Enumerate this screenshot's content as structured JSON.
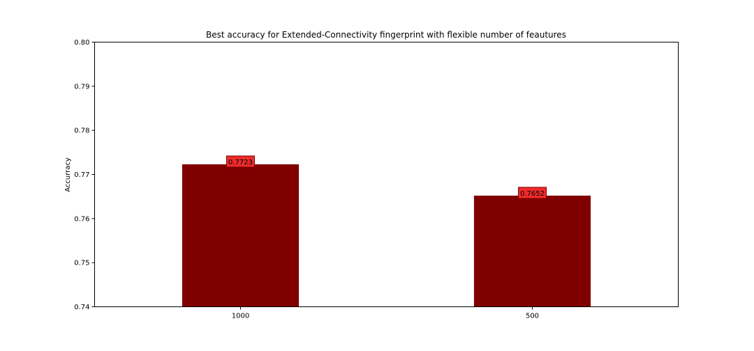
{
  "chart_data": {
    "type": "bar",
    "title": "Best accuracy for Extended-Connectivity fingerprint with flexible number of feautures",
    "xlabel": "",
    "ylabel": "Accurracy",
    "categories": [
      "1000",
      "500"
    ],
    "values": [
      0.7723,
      0.7652
    ],
    "data_labels": [
      "0.7723",
      "0.7652"
    ],
    "ylim": [
      0.74,
      0.8
    ],
    "yticks": [
      "0.74",
      "0.75",
      "0.76",
      "0.77",
      "0.78",
      "0.79",
      "0.80"
    ],
    "grid": false,
    "legend": "none",
    "colors": {
      "bar": "#800000",
      "label_box": "#ee2b2b",
      "label_box_border": "#7a0000",
      "axis": "#000000"
    }
  }
}
